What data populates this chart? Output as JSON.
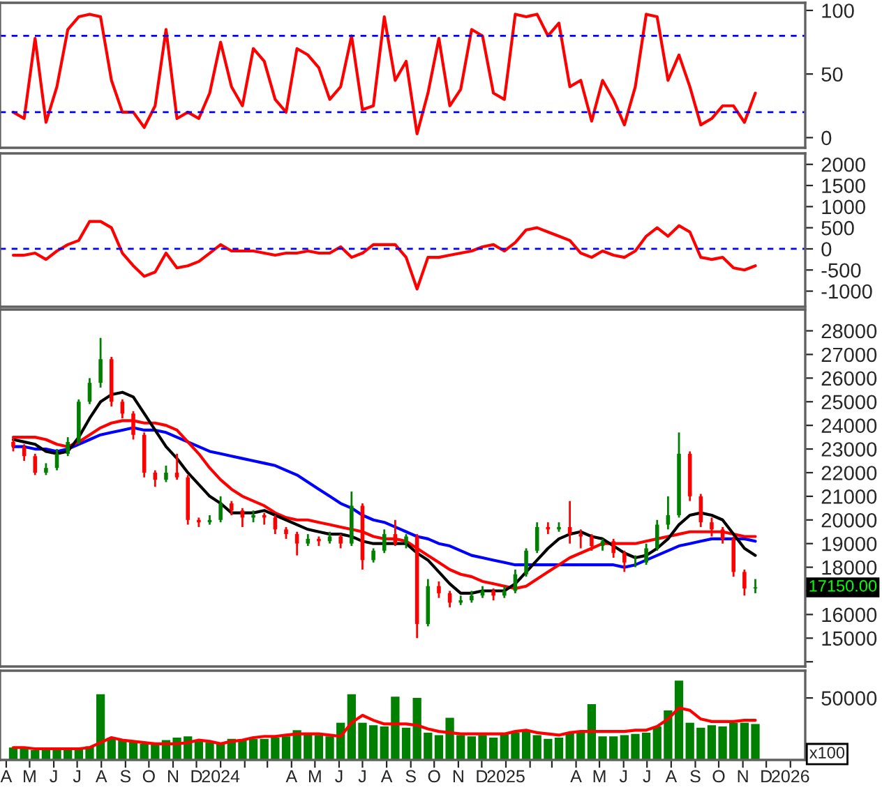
{
  "chart_data": [
    {
      "type": "line",
      "tick_labels": "y",
      "xlim": [
        "2023-03-24",
        "2026-01-20"
      ],
      "ylim": [
        -8,
        106
      ],
      "yticks": [
        0,
        50,
        100
      ],
      "x": [
        "2023-04-10",
        "2023-04-24",
        "2023-05-08",
        "2023-05-22",
        "2023-06-05",
        "2023-06-19",
        "2023-07-03",
        "2023-07-17",
        "2023-07-31",
        "2023-08-14",
        "2023-08-28",
        "2023-09-11",
        "2023-09-25",
        "2023-10-09",
        "2023-10-23",
        "2023-11-06",
        "2023-11-20",
        "2023-12-04",
        "2023-12-18",
        "2024-01-01",
        "2024-01-15",
        "2024-01-29",
        "2024-02-12",
        "2024-02-26",
        "2024-03-11",
        "2024-03-25",
        "2024-04-08",
        "2024-04-22",
        "2024-05-06",
        "2024-05-20",
        "2024-06-03",
        "2024-06-17",
        "2024-07-01",
        "2024-07-15",
        "2024-07-29",
        "2024-08-12",
        "2024-08-26",
        "2024-09-09",
        "2024-09-23",
        "2024-10-07",
        "2024-10-21",
        "2024-11-04",
        "2024-11-18",
        "2024-12-02",
        "2024-12-16",
        "2024-12-30",
        "2025-01-13",
        "2025-01-27",
        "2025-02-10",
        "2025-02-24",
        "2025-03-10",
        "2025-03-24",
        "2025-04-07",
        "2025-04-21",
        "2025-05-05",
        "2025-05-19",
        "2025-06-02",
        "2025-06-16",
        "2025-06-30",
        "2025-07-14",
        "2025-07-28",
        "2025-08-11",
        "2025-08-25",
        "2025-09-08",
        "2025-09-22",
        "2025-10-06",
        "2025-10-20",
        "2025-11-03",
        "2025-11-17"
      ],
      "series": [
        {
          "color": "#ff0000",
          "values": [
            20,
            15,
            78,
            12,
            40,
            85,
            95,
            97,
            95,
            45,
            20,
            20,
            8,
            25,
            85,
            15,
            20,
            15,
            35,
            75,
            40,
            25,
            70,
            60,
            30,
            20,
            70,
            65,
            55,
            30,
            40,
            80,
            22,
            25,
            95,
            45,
            60,
            3,
            35,
            78,
            25,
            38,
            85,
            80,
            35,
            30,
            97,
            95,
            97,
            80,
            90,
            40,
            45,
            13,
            45,
            30,
            10,
            40,
            97,
            95,
            45,
            65,
            40,
            10,
            15,
            25,
            25,
            12,
            35
          ]
        }
      ],
      "ref_lines": [
        {
          "axis": "y",
          "value": 80,
          "color": "#0000ff",
          "line_style": "dashed"
        },
        {
          "axis": "y",
          "value": 20,
          "color": "#0000ff",
          "line_style": "dashed"
        }
      ]
    },
    {
      "type": "line",
      "tick_labels": "y",
      "xlim": [
        "2023-03-24",
        "2026-01-20"
      ],
      "ylim": [
        -1370,
        2260
      ],
      "yticks": [
        -1000,
        -500,
        0,
        500,
        1000,
        1500,
        2000
      ],
      "x": [
        "2023-04-10",
        "2023-04-24",
        "2023-05-08",
        "2023-05-22",
        "2023-06-05",
        "2023-06-19",
        "2023-07-03",
        "2023-07-17",
        "2023-07-31",
        "2023-08-14",
        "2023-08-28",
        "2023-09-11",
        "2023-09-25",
        "2023-10-09",
        "2023-10-23",
        "2023-11-06",
        "2023-11-20",
        "2023-12-04",
        "2023-12-18",
        "2024-01-01",
        "2024-01-15",
        "2024-01-29",
        "2024-02-12",
        "2024-02-26",
        "2024-03-11",
        "2024-03-25",
        "2024-04-08",
        "2024-04-22",
        "2024-05-06",
        "2024-05-20",
        "2024-06-03",
        "2024-06-17",
        "2024-07-01",
        "2024-07-15",
        "2024-07-29",
        "2024-08-12",
        "2024-08-26",
        "2024-09-09",
        "2024-09-23",
        "2024-10-07",
        "2024-10-21",
        "2024-11-04",
        "2024-11-18",
        "2024-12-02",
        "2024-12-16",
        "2024-12-30",
        "2025-01-13",
        "2025-01-27",
        "2025-02-10",
        "2025-02-24",
        "2025-03-10",
        "2025-03-24",
        "2025-04-07",
        "2025-04-21",
        "2025-05-05",
        "2025-05-19",
        "2025-06-02",
        "2025-06-16",
        "2025-06-30",
        "2025-07-14",
        "2025-07-28",
        "2025-08-11",
        "2025-08-25",
        "2025-09-08",
        "2025-09-22",
        "2025-10-06",
        "2025-10-20",
        "2025-11-03",
        "2025-11-17"
      ],
      "series": [
        {
          "color": "#ff0000",
          "values": [
            -150,
            -150,
            -100,
            -250,
            -50,
            100,
            200,
            650,
            650,
            500,
            -100,
            -400,
            -650,
            -550,
            -100,
            -450,
            -400,
            -300,
            -100,
            100,
            -50,
            -50,
            -50,
            -100,
            -150,
            -100,
            -100,
            -50,
            -100,
            -100,
            50,
            -200,
            -100,
            100,
            100,
            100,
            -200,
            -950,
            -200,
            -200,
            -150,
            -100,
            -50,
            50,
            100,
            -50,
            150,
            450,
            500,
            400,
            300,
            200,
            -100,
            -200,
            -50,
            -150,
            -200,
            -50,
            300,
            500,
            300,
            550,
            400,
            -200,
            -250,
            -200,
            -450,
            -500,
            -400
          ]
        }
      ],
      "ref_lines": [
        {
          "axis": "y",
          "value": 0,
          "color": "#0000ff",
          "line_style": "dashed"
        }
      ]
    },
    {
      "type": "candlestick",
      "tick_labels": "y",
      "xlim": [
        "2023-03-24",
        "2026-01-20"
      ],
      "ylim": [
        13800,
        28900
      ],
      "yticks": [
        {
          "value": 14000,
          "label": null
        },
        15000,
        16000,
        {
          "value": 17000,
          "label": null
        },
        18000,
        19000,
        20000,
        21000,
        22000,
        23000,
        24000,
        25000,
        26000,
        27000,
        28000
      ],
      "x": [
        "2023-04-10",
        "2023-04-24",
        "2023-05-08",
        "2023-05-22",
        "2023-06-05",
        "2023-06-19",
        "2023-07-03",
        "2023-07-17",
        "2023-07-31",
        "2023-08-14",
        "2023-08-28",
        "2023-09-11",
        "2023-09-25",
        "2023-10-09",
        "2023-10-23",
        "2023-11-06",
        "2023-11-20",
        "2023-12-04",
        "2023-12-18",
        "2024-01-01",
        "2024-01-15",
        "2024-01-29",
        "2024-02-12",
        "2024-02-26",
        "2024-03-11",
        "2024-03-25",
        "2024-04-08",
        "2024-04-22",
        "2024-05-06",
        "2024-05-20",
        "2024-06-03",
        "2024-06-17",
        "2024-07-01",
        "2024-07-15",
        "2024-07-29",
        "2024-08-12",
        "2024-08-26",
        "2024-09-09",
        "2024-09-23",
        "2024-10-07",
        "2024-10-21",
        "2024-11-04",
        "2024-11-18",
        "2024-12-02",
        "2024-12-16",
        "2024-12-30",
        "2025-01-13",
        "2025-01-27",
        "2025-02-10",
        "2025-02-24",
        "2025-03-10",
        "2025-03-24",
        "2025-04-07",
        "2025-04-21",
        "2025-05-05",
        "2025-05-19",
        "2025-06-02",
        "2025-06-16",
        "2025-06-30",
        "2025-07-14",
        "2025-07-28",
        "2025-08-11",
        "2025-08-25",
        "2025-09-08",
        "2025-09-22",
        "2025-10-06",
        "2025-10-20",
        "2025-11-03",
        "2025-11-17"
      ],
      "ohlc": [
        [
          23300,
          23500,
          22900,
          23100
        ],
        [
          23100,
          23200,
          22500,
          22700
        ],
        [
          22700,
          22800,
          21900,
          22000
        ],
        [
          22000,
          22400,
          21900,
          22200
        ],
        [
          22200,
          23000,
          22100,
          22800
        ],
        [
          22800,
          23500,
          22700,
          23300
        ],
        [
          23300,
          25100,
          23200,
          25000
        ],
        [
          25000,
          26000,
          24900,
          25800
        ],
        [
          25800,
          27700,
          25600,
          26800
        ],
        [
          26800,
          26900,
          24800,
          25000
        ],
        [
          25000,
          25100,
          24300,
          24500
        ],
        [
          24500,
          24600,
          23400,
          23600
        ],
        [
          23600,
          23700,
          21800,
          22000
        ],
        [
          22000,
          22100,
          21400,
          21700
        ],
        [
          21700,
          22300,
          21600,
          22000
        ],
        [
          22000,
          22800,
          21700,
          21800
        ],
        [
          21800,
          21900,
          19800,
          20000
        ],
        [
          20000,
          20100,
          19700,
          19900
        ],
        [
          19900,
          20200,
          19800,
          20000
        ],
        [
          20000,
          21000,
          19900,
          20700
        ],
        [
          20700,
          20800,
          20200,
          20400
        ],
        [
          20400,
          20500,
          19700,
          20100
        ],
        [
          20100,
          20400,
          19900,
          20200
        ],
        [
          20200,
          20300,
          19800,
          20100
        ],
        [
          20100,
          20200,
          19400,
          19600
        ],
        [
          19600,
          19700,
          19200,
          19400
        ],
        [
          19400,
          19500,
          18500,
          19000
        ],
        [
          19000,
          19400,
          18900,
          19200
        ],
        [
          19200,
          19300,
          18900,
          19100
        ],
        [
          19100,
          19500,
          19000,
          19300
        ],
        [
          19300,
          19400,
          18800,
          19000
        ],
        [
          19000,
          21200,
          18900,
          20600
        ],
        [
          20600,
          20700,
          17900,
          18300
        ],
        [
          18300,
          18800,
          18200,
          18700
        ],
        [
          18700,
          19600,
          18600,
          19400
        ],
        [
          19400,
          20000,
          18900,
          19000
        ],
        [
          19000,
          19400,
          18800,
          19300
        ],
        [
          19300,
          19400,
          15000,
          15600
        ],
        [
          15600,
          17500,
          15500,
          17200
        ],
        [
          17200,
          17400,
          16700,
          16900
        ],
        [
          16900,
          17000,
          16300,
          16500
        ],
        [
          16500,
          16800,
          16400,
          16600
        ],
        [
          16600,
          17000,
          16500,
          16800
        ],
        [
          16800,
          17200,
          16700,
          17000
        ],
        [
          17000,
          17100,
          16600,
          16800
        ],
        [
          16800,
          17200,
          16700,
          17000
        ],
        [
          17000,
          17900,
          16900,
          17700
        ],
        [
          17700,
          18800,
          17600,
          18700
        ],
        [
          18700,
          19900,
          18600,
          19700
        ],
        [
          19700,
          19900,
          19400,
          19600
        ],
        [
          19600,
          19900,
          19500,
          19700
        ],
        [
          19700,
          20800,
          19000,
          19400
        ],
        [
          19400,
          19600,
          18800,
          19300
        ],
        [
          19300,
          19400,
          18700,
          18900
        ],
        [
          18900,
          19200,
          18700,
          19100
        ],
        [
          19100,
          19200,
          18400,
          18600
        ],
        [
          18600,
          18700,
          17800,
          18200
        ],
        [
          18200,
          18500,
          18000,
          18200
        ],
        [
          18200,
          19000,
          18100,
          18800
        ],
        [
          18800,
          20000,
          18700,
          19800
        ],
        [
          19800,
          21000,
          19600,
          20200
        ],
        [
          20200,
          23700,
          20100,
          22800
        ],
        [
          22800,
          22900,
          20800,
          21000
        ],
        [
          21000,
          21100,
          19700,
          19900
        ],
        [
          19900,
          20100,
          19300,
          19600
        ],
        [
          19600,
          19700,
          19000,
          19200
        ],
        [
          19200,
          19300,
          17600,
          17800
        ],
        [
          17800,
          17900,
          16800,
          17100
        ],
        [
          17100,
          17500,
          16900,
          17150
        ]
      ],
      "series": [
        {
          "type": "line",
          "color": "#0000ff",
          "values": [
            23100,
            23100,
            23000,
            23000,
            22900,
            23000,
            23200,
            23400,
            23600,
            23700,
            23800,
            23900,
            23800,
            23800,
            23700,
            23500,
            23300,
            23100,
            22900,
            22800,
            22700,
            22600,
            22500,
            22400,
            22300,
            22100,
            21900,
            21600,
            21300,
            21000,
            20700,
            20500,
            20200,
            20000,
            19900,
            19700,
            19500,
            19300,
            19200,
            19000,
            18900,
            18700,
            18500,
            18400,
            18300,
            18200,
            18100,
            18100,
            18100,
            18100,
            18100,
            18100,
            18100,
            18100,
            18100,
            18100,
            18000,
            18100,
            18300,
            18500,
            18700,
            18900,
            19000,
            19100,
            19200,
            19200,
            19200,
            19200,
            19100
          ]
        },
        {
          "type": "line",
          "color": "#ff0000",
          "values": [
            23500,
            23500,
            23500,
            23400,
            23200,
            23100,
            23300,
            23600,
            23900,
            24100,
            24200,
            24200,
            24100,
            24100,
            24000,
            23800,
            23300,
            22800,
            22200,
            21700,
            21300,
            21000,
            20800,
            20600,
            20300,
            20100,
            20000,
            20000,
            19900,
            19800,
            19700,
            19600,
            19500,
            19300,
            19200,
            19200,
            19100,
            18800,
            18500,
            18200,
            17900,
            17700,
            17600,
            17400,
            17300,
            17200,
            17100,
            17200,
            17500,
            17800,
            18100,
            18400,
            18600,
            18800,
            19000,
            19000,
            19000,
            19000,
            19100,
            19200,
            19300,
            19400,
            19500,
            19500,
            19500,
            19500,
            19400,
            19300,
            19300
          ]
        },
        {
          "type": "line",
          "color": "#000000",
          "values": [
            23400,
            23300,
            23200,
            22900,
            22800,
            22900,
            23500,
            24300,
            25000,
            25300,
            25400,
            25200,
            24500,
            23800,
            23100,
            22600,
            22000,
            21500,
            21000,
            20700,
            20300,
            20300,
            20300,
            20400,
            20200,
            20000,
            19800,
            19600,
            19500,
            19400,
            19400,
            19300,
            19100,
            19000,
            19000,
            19000,
            19000,
            18600,
            18300,
            17800,
            17300,
            16900,
            16900,
            17000,
            17000,
            17000,
            17300,
            17800,
            18300,
            18800,
            19200,
            19400,
            19500,
            19300,
            19200,
            18900,
            18600,
            18400,
            18500,
            18800,
            19200,
            19800,
            20200,
            20300,
            20200,
            20000,
            19400,
            18800,
            18500
          ]
        }
      ],
      "annotations": [
        "17150.00"
      ]
    },
    {
      "type": "bar",
      "xlim": [
        "2023-03-24",
        "2026-01-20"
      ],
      "ylim": [
        0,
        72000
      ],
      "yticks": [
        {
          "value": 0,
          "label": null
        },
        50000
      ],
      "xticks": [
        {
          "value": "2023-04-01",
          "label": "A"
        },
        {
          "value": "2023-05-01",
          "label": "M"
        },
        {
          "value": "2023-06-01",
          "label": "J"
        },
        {
          "value": "2023-07-01",
          "label": "J"
        },
        {
          "value": "2023-08-01",
          "label": "A"
        },
        {
          "value": "2023-09-01",
          "label": "S"
        },
        {
          "value": "2023-10-01",
          "label": "O"
        },
        {
          "value": "2023-11-01",
          "label": "N"
        },
        {
          "value": "2023-12-01",
          "label": "D"
        },
        {
          "value": "2024-01-01",
          "label": "2024"
        },
        {
          "value": "2024-02-01",
          "label": null
        },
        {
          "value": "2024-03-01",
          "label": null
        },
        {
          "value": "2024-04-01",
          "label": "A"
        },
        {
          "value": "2024-05-01",
          "label": "M"
        },
        {
          "value": "2024-06-01",
          "label": "J"
        },
        {
          "value": "2024-07-01",
          "label": "J"
        },
        {
          "value": "2024-08-01",
          "label": "A"
        },
        {
          "value": "2024-09-01",
          "label": "S"
        },
        {
          "value": "2024-10-01",
          "label": "O"
        },
        {
          "value": "2024-11-01",
          "label": "N"
        },
        {
          "value": "2024-12-01",
          "label": "D"
        },
        {
          "value": "2025-01-01",
          "label": "2025"
        },
        {
          "value": "2025-02-01",
          "label": null
        },
        {
          "value": "2025-03-01",
          "label": null
        },
        {
          "value": "2025-04-01",
          "label": "A"
        },
        {
          "value": "2025-05-01",
          "label": "M"
        },
        {
          "value": "2025-06-01",
          "label": "J"
        },
        {
          "value": "2025-07-01",
          "label": "J"
        },
        {
          "value": "2025-08-01",
          "label": "A"
        },
        {
          "value": "2025-09-01",
          "label": "S"
        },
        {
          "value": "2025-10-01",
          "label": "O"
        },
        {
          "value": "2025-11-01",
          "label": "N"
        },
        {
          "value": "2025-12-01",
          "label": "D"
        },
        {
          "value": "2026-01-01",
          "label": "2026"
        }
      ],
      "x": [
        "2023-04-10",
        "2023-04-24",
        "2023-05-08",
        "2023-05-22",
        "2023-06-05",
        "2023-06-19",
        "2023-07-03",
        "2023-07-17",
        "2023-07-31",
        "2023-08-14",
        "2023-08-28",
        "2023-09-11",
        "2023-09-25",
        "2023-10-09",
        "2023-10-23",
        "2023-11-06",
        "2023-11-20",
        "2023-12-04",
        "2023-12-18",
        "2024-01-01",
        "2024-01-15",
        "2024-01-29",
        "2024-02-12",
        "2024-02-26",
        "2024-03-11",
        "2024-03-25",
        "2024-04-08",
        "2024-04-22",
        "2024-05-06",
        "2024-05-20",
        "2024-06-03",
        "2024-06-17",
        "2024-07-01",
        "2024-07-15",
        "2024-07-29",
        "2024-08-12",
        "2024-08-26",
        "2024-09-09",
        "2024-09-23",
        "2024-10-07",
        "2024-10-21",
        "2024-11-04",
        "2024-11-18",
        "2024-12-02",
        "2024-12-16",
        "2024-12-30",
        "2025-01-13",
        "2025-01-27",
        "2025-02-10",
        "2025-02-24",
        "2025-03-10",
        "2025-03-24",
        "2025-04-07",
        "2025-04-21",
        "2025-05-05",
        "2025-05-19",
        "2025-06-02",
        "2025-06-16",
        "2025-06-30",
        "2025-07-14",
        "2025-07-28",
        "2025-08-11",
        "2025-08-25",
        "2025-09-08",
        "2025-09-22",
        "2025-10-06",
        "2025-10-20",
        "2025-11-03",
        "2025-11-17"
      ],
      "series": [
        {
          "color": "#008000",
          "values": [
            10000,
            9000,
            8000,
            8000,
            8000,
            9000,
            10000,
            11000,
            53000,
            18000,
            16000,
            15000,
            13000,
            14000,
            16000,
            18000,
            19000,
            15000,
            14000,
            13000,
            17000,
            16000,
            17000,
            17000,
            18000,
            19000,
            24000,
            21000,
            20000,
            19000,
            30000,
            53000,
            30000,
            28000,
            27000,
            51000,
            26000,
            50000,
            22000,
            20000,
            34000,
            20000,
            19000,
            20000,
            18000,
            21000,
            22000,
            24000,
            20000,
            17000,
            18000,
            22000,
            23000,
            45000,
            19000,
            19000,
            20000,
            21000,
            22000,
            27000,
            40000,
            64000,
            30000,
            26000,
            28000,
            27000,
            30000,
            30000,
            29000
          ]
        },
        {
          "type": "line",
          "color": "#ff0000",
          "values": [
            10000,
            10000,
            9000,
            9000,
            9000,
            9000,
            9000,
            10000,
            14000,
            18000,
            16000,
            15000,
            14000,
            13000,
            13000,
            13000,
            14000,
            16000,
            15000,
            13000,
            15000,
            16000,
            18000,
            19000,
            19000,
            20000,
            21000,
            21000,
            21000,
            20000,
            19000,
            30000,
            36000,
            32000,
            29000,
            29000,
            29000,
            28000,
            25000,
            23000,
            22000,
            21000,
            21000,
            21000,
            21000,
            21000,
            23000,
            24000,
            22000,
            21000,
            20000,
            22000,
            23000,
            23000,
            23000,
            23000,
            23000,
            24000,
            24000,
            27000,
            33000,
            42000,
            40000,
            33000,
            31000,
            31000,
            31000,
            32000,
            32000
          ]
        }
      ],
      "annotations": [
        "x100"
      ]
    }
  ]
}
